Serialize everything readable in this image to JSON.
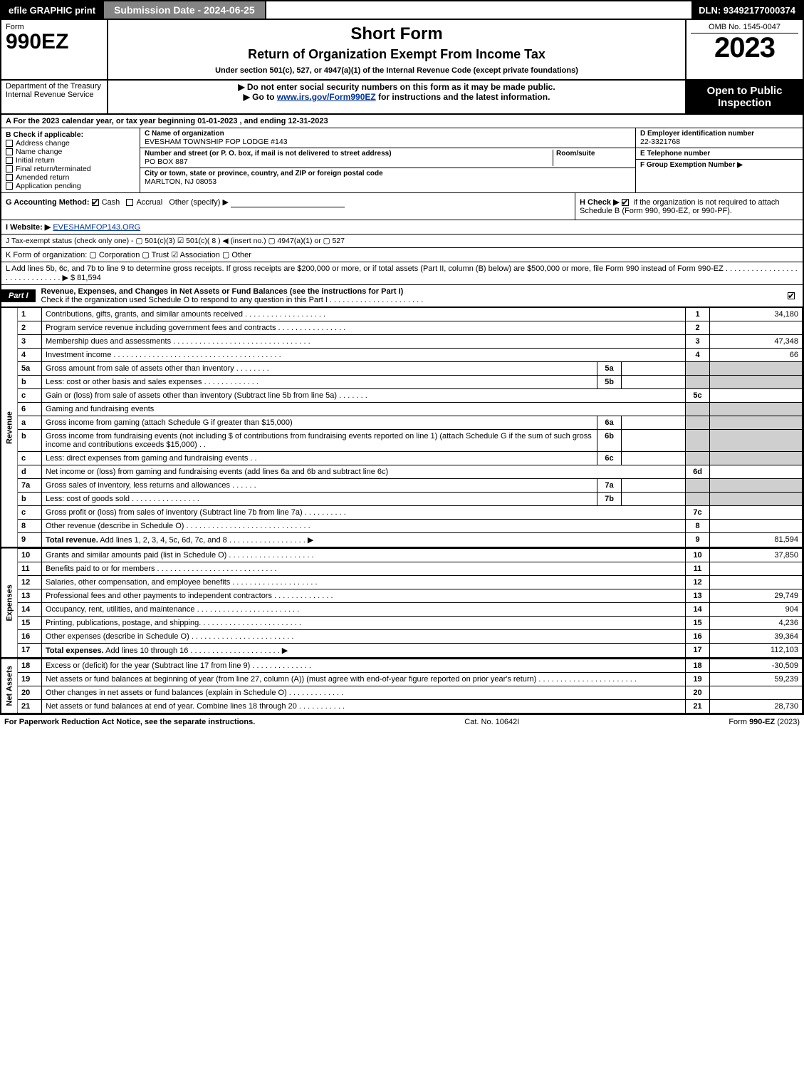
{
  "topbar": {
    "efile": "efile GRAPHIC print",
    "submission": "Submission Date - 2024-06-25",
    "dln": "DLN: 93492177000374"
  },
  "header": {
    "form_word": "Form",
    "form_no": "990EZ",
    "title": "Short Form",
    "subtitle": "Return of Organization Exempt From Income Tax",
    "under": "Under section 501(c), 527, or 4947(a)(1) of the Internal Revenue Code (except private foundations)",
    "omb": "OMB No. 1545-0047",
    "year": "2023"
  },
  "dept": {
    "left": "Department of the Treasury\nInternal Revenue Service",
    "warn": "▶ Do not enter social security numbers on this form as it may be made public.",
    "goto_pre": "▶ Go to ",
    "goto_link": "www.irs.gov/Form990EZ",
    "goto_post": " for instructions and the latest information.",
    "right": "Open to Public Inspection"
  },
  "A": "A  For the 2023 calendar year, or tax year beginning 01-01-2023 , and ending 12-31-2023",
  "B": {
    "label": "B  Check if applicable:",
    "opts": [
      "Address change",
      "Name change",
      "Initial return",
      "Final return/terminated",
      "Amended return",
      "Application pending"
    ]
  },
  "C": {
    "name_label": "C Name of organization",
    "name": "EVESHAM TOWNSHIP FOP LODGE #143",
    "street_label": "Number and street (or P. O. box, if mail is not delivered to street address)",
    "room_label": "Room/suite",
    "street": "PO BOX 887",
    "city_label": "City or town, state or province, country, and ZIP or foreign postal code",
    "city": "MARLTON, NJ  08053"
  },
  "D": {
    "label": "D Employer identification number",
    "value": "22-3321768"
  },
  "E": {
    "label": "E Telephone number",
    "value": ""
  },
  "F": {
    "label": "F Group Exemption Number  ▶",
    "value": ""
  },
  "G": {
    "label": "G Accounting Method:",
    "cash": "Cash",
    "accrual": "Accrual",
    "other": "Other (specify) ▶"
  },
  "H": {
    "label": "H  Check ▶ ",
    "text": " if the organization is not required to attach Schedule B (Form 990, 990-EZ, or 990-PF)."
  },
  "I": {
    "label": "I Website: ▶",
    "value": "EVESHAMFOP143.ORG"
  },
  "J": "J Tax-exempt status (check only one) -  ▢ 501(c)(3)  ☑ 501(c)( 8 ) ◀ (insert no.)  ▢ 4947(a)(1) or  ▢ 527",
  "K": "K Form of organization:   ▢ Corporation   ▢ Trust   ☑ Association   ▢ Other",
  "L": {
    "text": "L Add lines 5b, 6c, and 7b to line 9 to determine gross receipts. If gross receipts are $200,000 or more, or if total assets (Part II, column (B) below) are $500,000 or more, file Form 990 instead of Form 990-EZ . . . . . . . . . . . . . . . . . . . . . . . . . . . . . .  ▶ $",
    "value": "81,594"
  },
  "part1": {
    "tag": "Part I",
    "title": "Revenue, Expenses, and Changes in Net Assets or Fund Balances (see the instructions for Part I)",
    "subtitle": "Check if the organization used Schedule O to respond to any question in this Part I . . . . . . . . . . . . . . . . . . . . . ."
  },
  "vlabels": {
    "rev": "Revenue",
    "exp": "Expenses",
    "na": "Net Assets"
  },
  "rows": [
    {
      "n": "1",
      "d": "Contributions, gifts, grants, and similar amounts received . . . . . . . . . . . . . . . . . . .",
      "rn": "1",
      "a": "34,180"
    },
    {
      "n": "2",
      "d": "Program service revenue including government fees and contracts . . . . . . . . . . . . . . . .",
      "rn": "2",
      "a": ""
    },
    {
      "n": "3",
      "d": "Membership dues and assessments . . . . . . . . . . . . . . . . . . . . . . . . . . . . . . . .",
      "rn": "3",
      "a": "47,348"
    },
    {
      "n": "4",
      "d": "Investment income . . . . . . . . . . . . . . . . . . . . . . . . . . . . . . . . . . . . . . .",
      "rn": "4",
      "a": "66"
    },
    {
      "n": "5a",
      "d": "Gross amount from sale of assets other than inventory . . . . . . . .",
      "sn": "5a",
      "sa": "",
      "shade": true
    },
    {
      "n": "b",
      "d": "Less: cost or other basis and sales expenses . . . . . . . . . . . . .",
      "sn": "5b",
      "sa": "",
      "shade": true
    },
    {
      "n": "c",
      "d": "Gain or (loss) from sale of assets other than inventory (Subtract line 5b from line 5a) . . . . . . .",
      "rn": "5c",
      "a": ""
    },
    {
      "n": "6",
      "d": "Gaming and fundraising events",
      "shade": true,
      "noamt": true
    },
    {
      "n": "a",
      "d": "Gross income from gaming (attach Schedule G if greater than $15,000)",
      "sn": "6a",
      "sa": "",
      "shade": true
    },
    {
      "n": "b",
      "d": "Gross income from fundraising events (not including $                           of contributions from fundraising events reported on line 1) (attach Schedule G if the sum of such gross income and contributions exceeds $15,000)   . .",
      "sn": "6b",
      "sa": "",
      "shade": true
    },
    {
      "n": "c",
      "d": "Less: direct expenses from gaming and fundraising events    . .",
      "sn": "6c",
      "sa": "",
      "shade": true
    },
    {
      "n": "d",
      "d": "Net income or (loss) from gaming and fundraising events (add lines 6a and 6b and subtract line 6c)",
      "rn": "6d",
      "a": ""
    },
    {
      "n": "7a",
      "d": "Gross sales of inventory, less returns and allowances . . . . . .",
      "sn": "7a",
      "sa": "",
      "shade": true
    },
    {
      "n": "b",
      "d": "Less: cost of goods sold     . . . . . . . . . . . . . . . .",
      "sn": "7b",
      "sa": "",
      "shade": true
    },
    {
      "n": "c",
      "d": "Gross profit or (loss) from sales of inventory (Subtract line 7b from line 7a) . . . . . . . . . .",
      "rn": "7c",
      "a": ""
    },
    {
      "n": "8",
      "d": "Other revenue (describe in Schedule O) . . . . . . . . . . . . . . . . . . . . . . . . . . . . .",
      "rn": "8",
      "a": ""
    },
    {
      "n": "9",
      "d": "Total revenue. Add lines 1, 2, 3, 4, 5c, 6d, 7c, and 8  . . . . . . . . . . . . . . . . . .    ▶",
      "rn": "9",
      "a": "81,594",
      "bold": true
    }
  ],
  "exp": [
    {
      "n": "10",
      "d": "Grants and similar amounts paid (list in Schedule O) . . . . . . . . . . . . . . . . . . . .",
      "rn": "10",
      "a": "37,850"
    },
    {
      "n": "11",
      "d": "Benefits paid to or for members     . . . . . . . . . . . . . . . . . . . . . . . . . . . .",
      "rn": "11",
      "a": ""
    },
    {
      "n": "12",
      "d": "Salaries, other compensation, and employee benefits . . . . . . . . . . . . . . . . . . . .",
      "rn": "12",
      "a": ""
    },
    {
      "n": "13",
      "d": "Professional fees and other payments to independent contractors . . . . . . . . . . . . . .",
      "rn": "13",
      "a": "29,749"
    },
    {
      "n": "14",
      "d": "Occupancy, rent, utilities, and maintenance . . . . . . . . . . . . . . . . . . . . . . . .",
      "rn": "14",
      "a": "904"
    },
    {
      "n": "15",
      "d": "Printing, publications, postage, and shipping. . . . . . . . . . . . . . . . . . . . . . . .",
      "rn": "15",
      "a": "4,236"
    },
    {
      "n": "16",
      "d": "Other expenses (describe in Schedule O)     . . . . . . . . . . . . . . . . . . . . . . . .",
      "rn": "16",
      "a": "39,364"
    },
    {
      "n": "17",
      "d": "Total expenses. Add lines 10 through 16     . . . . . . . . . . . . . . . . . . . . .    ▶",
      "rn": "17",
      "a": "112,103",
      "bold": true
    }
  ],
  "na": [
    {
      "n": "18",
      "d": "Excess or (deficit) for the year (Subtract line 17 from line 9)      . . . . . . . . . . . . . .",
      "rn": "18",
      "a": "-30,509"
    },
    {
      "n": "19",
      "d": "Net assets or fund balances at beginning of year (from line 27, column (A)) (must agree with end-of-year figure reported on prior year's return) . . . . . . . . . . . . . . . . . . . . . . .",
      "rn": "19",
      "a": "59,239"
    },
    {
      "n": "20",
      "d": "Other changes in net assets or fund balances (explain in Schedule O) . . . . . . . . . . . . .",
      "rn": "20",
      "a": ""
    },
    {
      "n": "21",
      "d": "Net assets or fund balances at end of year. Combine lines 18 through 20 . . . . . . . . . . .",
      "rn": "21",
      "a": "28,730"
    }
  ],
  "footer": {
    "left": "For Paperwork Reduction Act Notice, see the separate instructions.",
    "mid": "Cat. No. 10642I",
    "right_pre": "Form ",
    "right_form": "990-EZ",
    "right_post": " (2023)"
  }
}
